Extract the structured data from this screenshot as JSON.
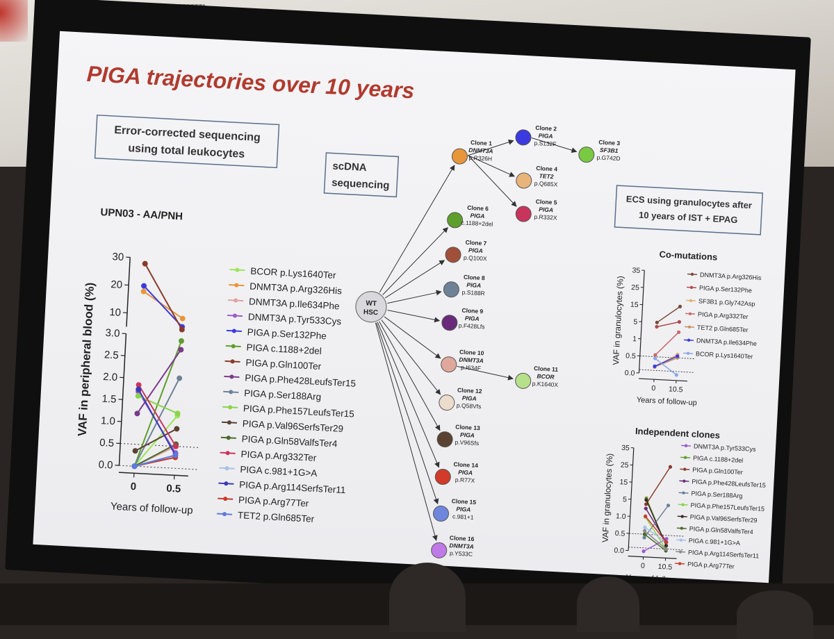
{
  "slide": {
    "title": "PIGA trajectories over 10 years"
  },
  "left_box": [
    "Error-corrected sequencing",
    "using total leukocytes"
  ],
  "mid_box": [
    "scDNA",
    "sequencing"
  ],
  "right_box": [
    "ECS using granulocytes after",
    "10 years of IST + EPAG"
  ],
  "patient_label": "UPN03 - AA/PNH",
  "root_node": [
    "WT",
    "HSC"
  ],
  "clones": [
    {
      "name": "Clone 1",
      "gene": "DNMT3A",
      "mutation": "p.R326H",
      "color": "#e8963a"
    },
    {
      "name": "Clone 2",
      "gene": "PIGA",
      "mutation": "p.S132F",
      "color": "#3b3ae0"
    },
    {
      "name": "Clone 3",
      "gene": "SF3B1",
      "mutation": "p.G742D",
      "color": "#7ac943"
    },
    {
      "name": "Clone 4",
      "gene": "TET2",
      "mutation": "p.Q685X",
      "color": "#e8b47a"
    },
    {
      "name": "Clone 5",
      "gene": "PIGA",
      "mutation": "p.R332X",
      "color": "#c9345c"
    },
    {
      "name": "Clone 6",
      "gene": "PIGA",
      "mutation": "c.1188+2del",
      "color": "#5e9e2c"
    },
    {
      "name": "Clone 7",
      "gene": "PIGA",
      "mutation": "p.Q100X",
      "color": "#a0503a"
    },
    {
      "name": "Clone 8",
      "gene": "PIGA",
      "mutation": "p.S188R",
      "color": "#6d8296"
    },
    {
      "name": "Clone 9",
      "gene": "PIGA",
      "mutation": "p.F428Lfs",
      "color": "#6a2a7a"
    },
    {
      "name": "Clone 10",
      "gene": "DNMT3A",
      "mutation": "p.I634F",
      "color": "#e0a89c"
    },
    {
      "name": "Clone 11",
      "gene": "BCOR",
      "mutation": "p.K1640X",
      "color": "#b6e08a"
    },
    {
      "name": "Clone 12",
      "gene": "PIGA",
      "mutation": "p.Q58Vfs",
      "color": "#ecdccc"
    },
    {
      "name": "Clone 13",
      "gene": "PIGA",
      "mutation": "p.V96Sfs",
      "color": "#5a4232"
    },
    {
      "name": "Clone 14",
      "gene": "PIGA",
      "mutation": "p.R77X",
      "color": "#d23a2a"
    },
    {
      "name": "Clone 15",
      "gene": "PIGA",
      "mutation": "c.981+1",
      "color": "#6e86dc"
    },
    {
      "name": "Clone 16",
      "gene": "DNMT3A",
      "mutation": "p.Y533C",
      "color": "#c07ae8"
    }
  ],
  "chart_data": [
    {
      "type": "line",
      "title": "",
      "ylabel": "VAF in peripheral blood  (%)",
      "xlabel": "Years of follow-up",
      "x": [
        0,
        0.5
      ],
      "x_ticks": [
        "0",
        "0.5"
      ],
      "y_ticks": [
        "0.0",
        "0.5",
        "1.0",
        "1.5",
        "2.0",
        "2.5",
        "3.0",
        "10",
        "20",
        "30"
      ],
      "ylim_lower": [
        0,
        3
      ],
      "ylim_upper": [
        5,
        30
      ],
      "threshold_lines": [
        0,
        0.5
      ],
      "legend_position": "right",
      "series": [
        {
          "name": "BCOR p.Lys1640Ter",
          "color": "#9be55a",
          "values": [
            0,
            1.2
          ]
        },
        {
          "name": "DNMT3A p.Arg326His",
          "color": "#e8963a",
          "values": [
            18,
            9
          ]
        },
        {
          "name": "DNMT3A p.Ile634Phe",
          "color": "#e0a0a0",
          "values": [
            0,
            0.5
          ]
        },
        {
          "name": "DNMT3A p.Tyr533Cys",
          "color": "#9a5ac8",
          "values": [
            1.7,
            0.35
          ]
        },
        {
          "name": "PIGA p.Ser132Phe",
          "color": "#3b3ae0",
          "values": [
            20,
            6
          ]
        },
        {
          "name": "PIGA c.1188+2del",
          "color": "#5e9e2c",
          "values": [
            0,
            2.9
          ]
        },
        {
          "name": "PIGA p.Gln100Ter",
          "color": "#8a3a2a",
          "values": [
            28,
            4
          ]
        },
        {
          "name": "PIGA p.Phe428LeufsTer15",
          "color": "#7a3a8a",
          "values": [
            1.2,
            2.7
          ]
        },
        {
          "name": "PIGA p.Ser188Arg",
          "color": "#6d8296",
          "values": [
            0,
            2.05
          ]
        },
        {
          "name": "PIGA p.Phe157LeufsTer15",
          "color": "#8ad44a",
          "values": [
            1.6,
            1.25
          ]
        },
        {
          "name": "PIGA p.Val96SerfsTer29",
          "color": "#5a4232",
          "values": [
            0.35,
            0.9
          ]
        },
        {
          "name": "PIGA p.Gln58ValfsTer4",
          "color": "#4a6a2a",
          "values": [
            0,
            0.55
          ]
        },
        {
          "name": "PIGA p.Arg332Ter",
          "color": "#c9345c",
          "values": [
            1.85,
            0.5
          ]
        },
        {
          "name": "PIGA c.981+1G>A",
          "color": "#a8c0e8",
          "values": [
            0,
            0.3
          ]
        },
        {
          "name": "PIGA p.Arg114SerfsTer11",
          "color": "#3a3ab8",
          "values": [
            1.75,
            0.3
          ]
        },
        {
          "name": "PIGA p.Arg77Ter",
          "color": "#c83a2a",
          "values": [
            0,
            0.25
          ]
        },
        {
          "name": "TET2 p.Gln685Ter",
          "color": "#5a7ae0",
          "values": [
            0,
            0.3
          ]
        }
      ]
    },
    {
      "type": "line",
      "title": "Co-mutations",
      "ylabel": "VAF in granulocytes  (%)",
      "xlabel": "Years of follow-up",
      "x": [
        0,
        10.5
      ],
      "x_ticks": [
        "0",
        "10.5"
      ],
      "y_ticks": [
        "0.0",
        "0.5",
        "1",
        "5",
        "15",
        "25",
        "35"
      ],
      "y_tick_values": [
        0,
        0.5,
        1,
        5,
        15,
        25,
        35
      ],
      "threshold_lines": [
        0.1,
        0.5
      ],
      "legend_position": "right",
      "series": [
        {
          "name": "DNMT3A p.Arg326His",
          "color": "#7a4a3a",
          "values": [
            5,
            15
          ]
        },
        {
          "name": "PIGA p.Ser132Phe",
          "color": "#b04a4a",
          "values": [
            4,
            6
          ]
        },
        {
          "name": "SF3B1 p.Gly742Asp",
          "color": "#e0b070",
          "values": [
            0.2,
            0.6
          ]
        },
        {
          "name": "PIGA p.Arg332Ter",
          "color": "#c86a6a",
          "values": [
            0.55,
            3
          ]
        },
        {
          "name": "TET2 p.Gln685Ter",
          "color": "#c8906a",
          "values": [
            0.2,
            0.5
          ]
        },
        {
          "name": "DNMT3A p.Ile634Phe",
          "color": "#3b3ae0",
          "values": [
            0.22,
            0.55
          ]
        },
        {
          "name": "BCOR p.Lys1640Ter",
          "color": "#8aa8e8",
          "values": [
            0.45,
            0
          ]
        }
      ]
    },
    {
      "type": "line",
      "title": "Independent clones",
      "ylabel": "VAF in granulocytes  (%)",
      "xlabel": "Years of follow-up",
      "x": [
        0,
        10.5
      ],
      "x_ticks": [
        "0",
        "10.5"
      ],
      "y_ticks": [
        "0.0",
        "0.5",
        "1.0",
        "5",
        "15",
        "25",
        "35"
      ],
      "y_tick_values": [
        0,
        0.5,
        1,
        5,
        15,
        25,
        35
      ],
      "threshold_lines": [
        0.1,
        0.5
      ],
      "legend_position": "right",
      "series": [
        {
          "name": "DNMT3A p.Tyr533Cys",
          "color": "#9a5ac8",
          "values": [
            0,
            0.4
          ]
        },
        {
          "name": "PIGA c.1188+2del",
          "color": "#5e9e2c",
          "values": [
            6,
            0.2
          ]
        },
        {
          "name": "PIGA p.Gln100Ter",
          "color": "#8a3a2a",
          "values": [
            4,
            25
          ]
        },
        {
          "name": "PIGA p.Phe428LeufsTer15",
          "color": "#6a2a7a",
          "values": [
            3,
            0.3
          ]
        },
        {
          "name": "PIGA p.Ser188Arg",
          "color": "#6d8296",
          "values": [
            0.4,
            4
          ]
        },
        {
          "name": "PIGA p.Phe157LeufsTer15",
          "color": "#8ad44a",
          "values": [
            1,
            0.1
          ]
        },
        {
          "name": "PIGA p.Val96SerfsTer29",
          "color": "#3a2a22",
          "values": [
            5,
            0.2
          ]
        },
        {
          "name": "PIGA p.Gln58ValfsTer4",
          "color": "#4a6a2a",
          "values": [
            0.5,
            0.05
          ]
        },
        {
          "name": "PIGA c.981+1G>A",
          "color": "#a8c0e8",
          "values": [
            0.7,
            0.3
          ]
        },
        {
          "name": "PIGA p.Arg114SerfsTer11",
          "color": "#8a8a8a",
          "values": [
            0.6,
            0.1
          ]
        },
        {
          "name": "PIGA p.Arg77Ter",
          "color": "#c83a2a",
          "values": [
            1.2,
            0.3
          ]
        }
      ]
    }
  ]
}
